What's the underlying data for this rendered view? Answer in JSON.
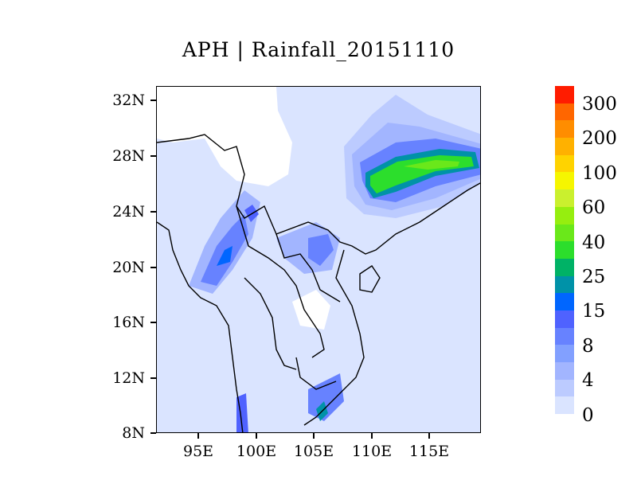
{
  "title": "APH | Rainfall_20151110",
  "map": {
    "lat_labels": [
      "32N",
      "28N",
      "24N",
      "20N",
      "16N",
      "12N",
      "8N"
    ],
    "lon_labels": [
      "95E",
      "100E",
      "105E",
      "110E",
      "115E"
    ]
  },
  "colorbar": {
    "colors_top_to_bottom": [
      "#ff1c00",
      "#ff6600",
      "#ff8d00",
      "#ffb100",
      "#ffd300",
      "#f6f600",
      "#caf02e",
      "#96ee0f",
      "#6ae81a",
      "#2cde2c",
      "#00b266",
      "#0092a8",
      "#0066ff",
      "#4f62ff",
      "#6782ff",
      "#82a0ff",
      "#a2b5ff",
      "#bccbff",
      "#dae4ff"
    ],
    "labels_top_to_bottom": [
      "300",
      "200",
      "100",
      "60",
      "40",
      "25",
      "15",
      "8",
      "4",
      "0"
    ]
  }
}
